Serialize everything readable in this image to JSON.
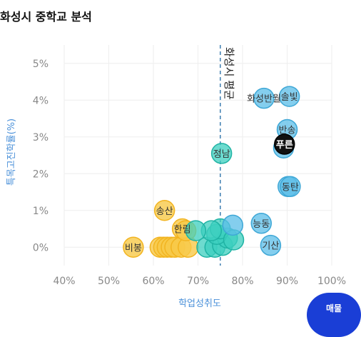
{
  "page": {
    "title": "화성시 중학교 분석",
    "button_label": "매물"
  },
  "chart_data": {
    "type": "scatter",
    "title": "화성시 중학교 분석",
    "xlabel": "학업성취도",
    "ylabel": "특목고진학률(%)",
    "xlim": [
      40,
      100
    ],
    "ylim": [
      -0.5,
      5.5
    ],
    "xticks": [
      {
        "value": 40,
        "label": "40%"
      },
      {
        "value": 50,
        "label": "50%"
      },
      {
        "value": 60,
        "label": "60%"
      },
      {
        "value": 70,
        "label": "70%"
      },
      {
        "value": 80,
        "label": "80%"
      },
      {
        "value": 90,
        "label": "90%"
      },
      {
        "value": 100,
        "label": "100%"
      }
    ],
    "yticks": [
      {
        "value": 0,
        "label": "0%"
      },
      {
        "value": 1,
        "label": "1%"
      },
      {
        "value": 2,
        "label": "2%"
      },
      {
        "value": 3,
        "label": "3%"
      },
      {
        "value": 4,
        "label": "4%"
      },
      {
        "value": 5,
        "label": "5%"
      }
    ],
    "grid": true,
    "reference_line": {
      "x": 75,
      "label": "화성시 평균",
      "color": "#3d7eb0"
    },
    "colors": {
      "low": "#f7c948",
      "mid": "#3ccfbf",
      "high": "#5bbde8",
      "selected": "#111111",
      "axis_label": "#4a90d9",
      "tick": "#888888"
    },
    "points": [
      {
        "name": "비봉",
        "x": 55.5,
        "y": 0.0,
        "group": "low"
      },
      {
        "name": "",
        "x": 61.5,
        "y": 0.0,
        "group": "low"
      },
      {
        "name": "",
        "x": 62.3,
        "y": 0.0,
        "group": "low"
      },
      {
        "name": "",
        "x": 63.1,
        "y": 0.0,
        "group": "low"
      },
      {
        "name": "",
        "x": 64.0,
        "y": 0.0,
        "group": "low"
      },
      {
        "name": "",
        "x": 64.8,
        "y": 0.0,
        "group": "low"
      },
      {
        "name": "",
        "x": 66.2,
        "y": 0.0,
        "group": "low"
      },
      {
        "name": "",
        "x": 67.8,
        "y": 0.0,
        "group": "low"
      },
      {
        "name": "송산",
        "x": 62.5,
        "y": 1.0,
        "group": "low"
      },
      {
        "name": "한림",
        "x": 66.5,
        "y": 0.5,
        "group": "low"
      },
      {
        "name": "",
        "x": 67.3,
        "y": 0.45,
        "group": "low"
      },
      {
        "name": "",
        "x": 72.0,
        "y": 0.0,
        "group": "mid"
      },
      {
        "name": "",
        "x": 73.8,
        "y": 0.0,
        "group": "mid"
      },
      {
        "name": "",
        "x": 75.5,
        "y": 0.05,
        "group": "mid"
      },
      {
        "name": "",
        "x": 76.6,
        "y": 0.25,
        "group": "mid"
      },
      {
        "name": "",
        "x": 74.2,
        "y": 0.35,
        "group": "mid"
      },
      {
        "name": "",
        "x": 75.0,
        "y": 0.5,
        "group": "mid"
      },
      {
        "name": "",
        "x": 73.0,
        "y": 0.45,
        "group": "mid"
      },
      {
        "name": "",
        "x": 69.5,
        "y": 0.45,
        "group": "mid"
      },
      {
        "name": "",
        "x": 78.0,
        "y": 0.2,
        "group": "mid"
      },
      {
        "name": "정남",
        "x": 75.3,
        "y": 2.55,
        "group": "mid"
      },
      {
        "name": "",
        "x": 77.8,
        "y": 0.6,
        "group": "high"
      },
      {
        "name": "능동",
        "x": 84.2,
        "y": 0.65,
        "group": "high"
      },
      {
        "name": "기산",
        "x": 86.3,
        "y": 0.05,
        "group": "high"
      },
      {
        "name": "화성반월",
        "x": 84.8,
        "y": 4.05,
        "group": "high"
      },
      {
        "name": "솔빛",
        "x": 90.5,
        "y": 4.1,
        "group": "high"
      },
      {
        "name": "반송",
        "x": 90.0,
        "y": 3.2,
        "group": "high"
      },
      {
        "name": "",
        "x": 89.2,
        "y": 2.7,
        "group": "high"
      },
      {
        "name": "푸른",
        "x": 89.4,
        "y": 2.8,
        "group": "selected"
      },
      {
        "name": "",
        "x": 90.2,
        "y": 1.65,
        "group": "high"
      },
      {
        "name": "동탄",
        "x": 90.7,
        "y": 1.65,
        "group": "high"
      }
    ]
  }
}
